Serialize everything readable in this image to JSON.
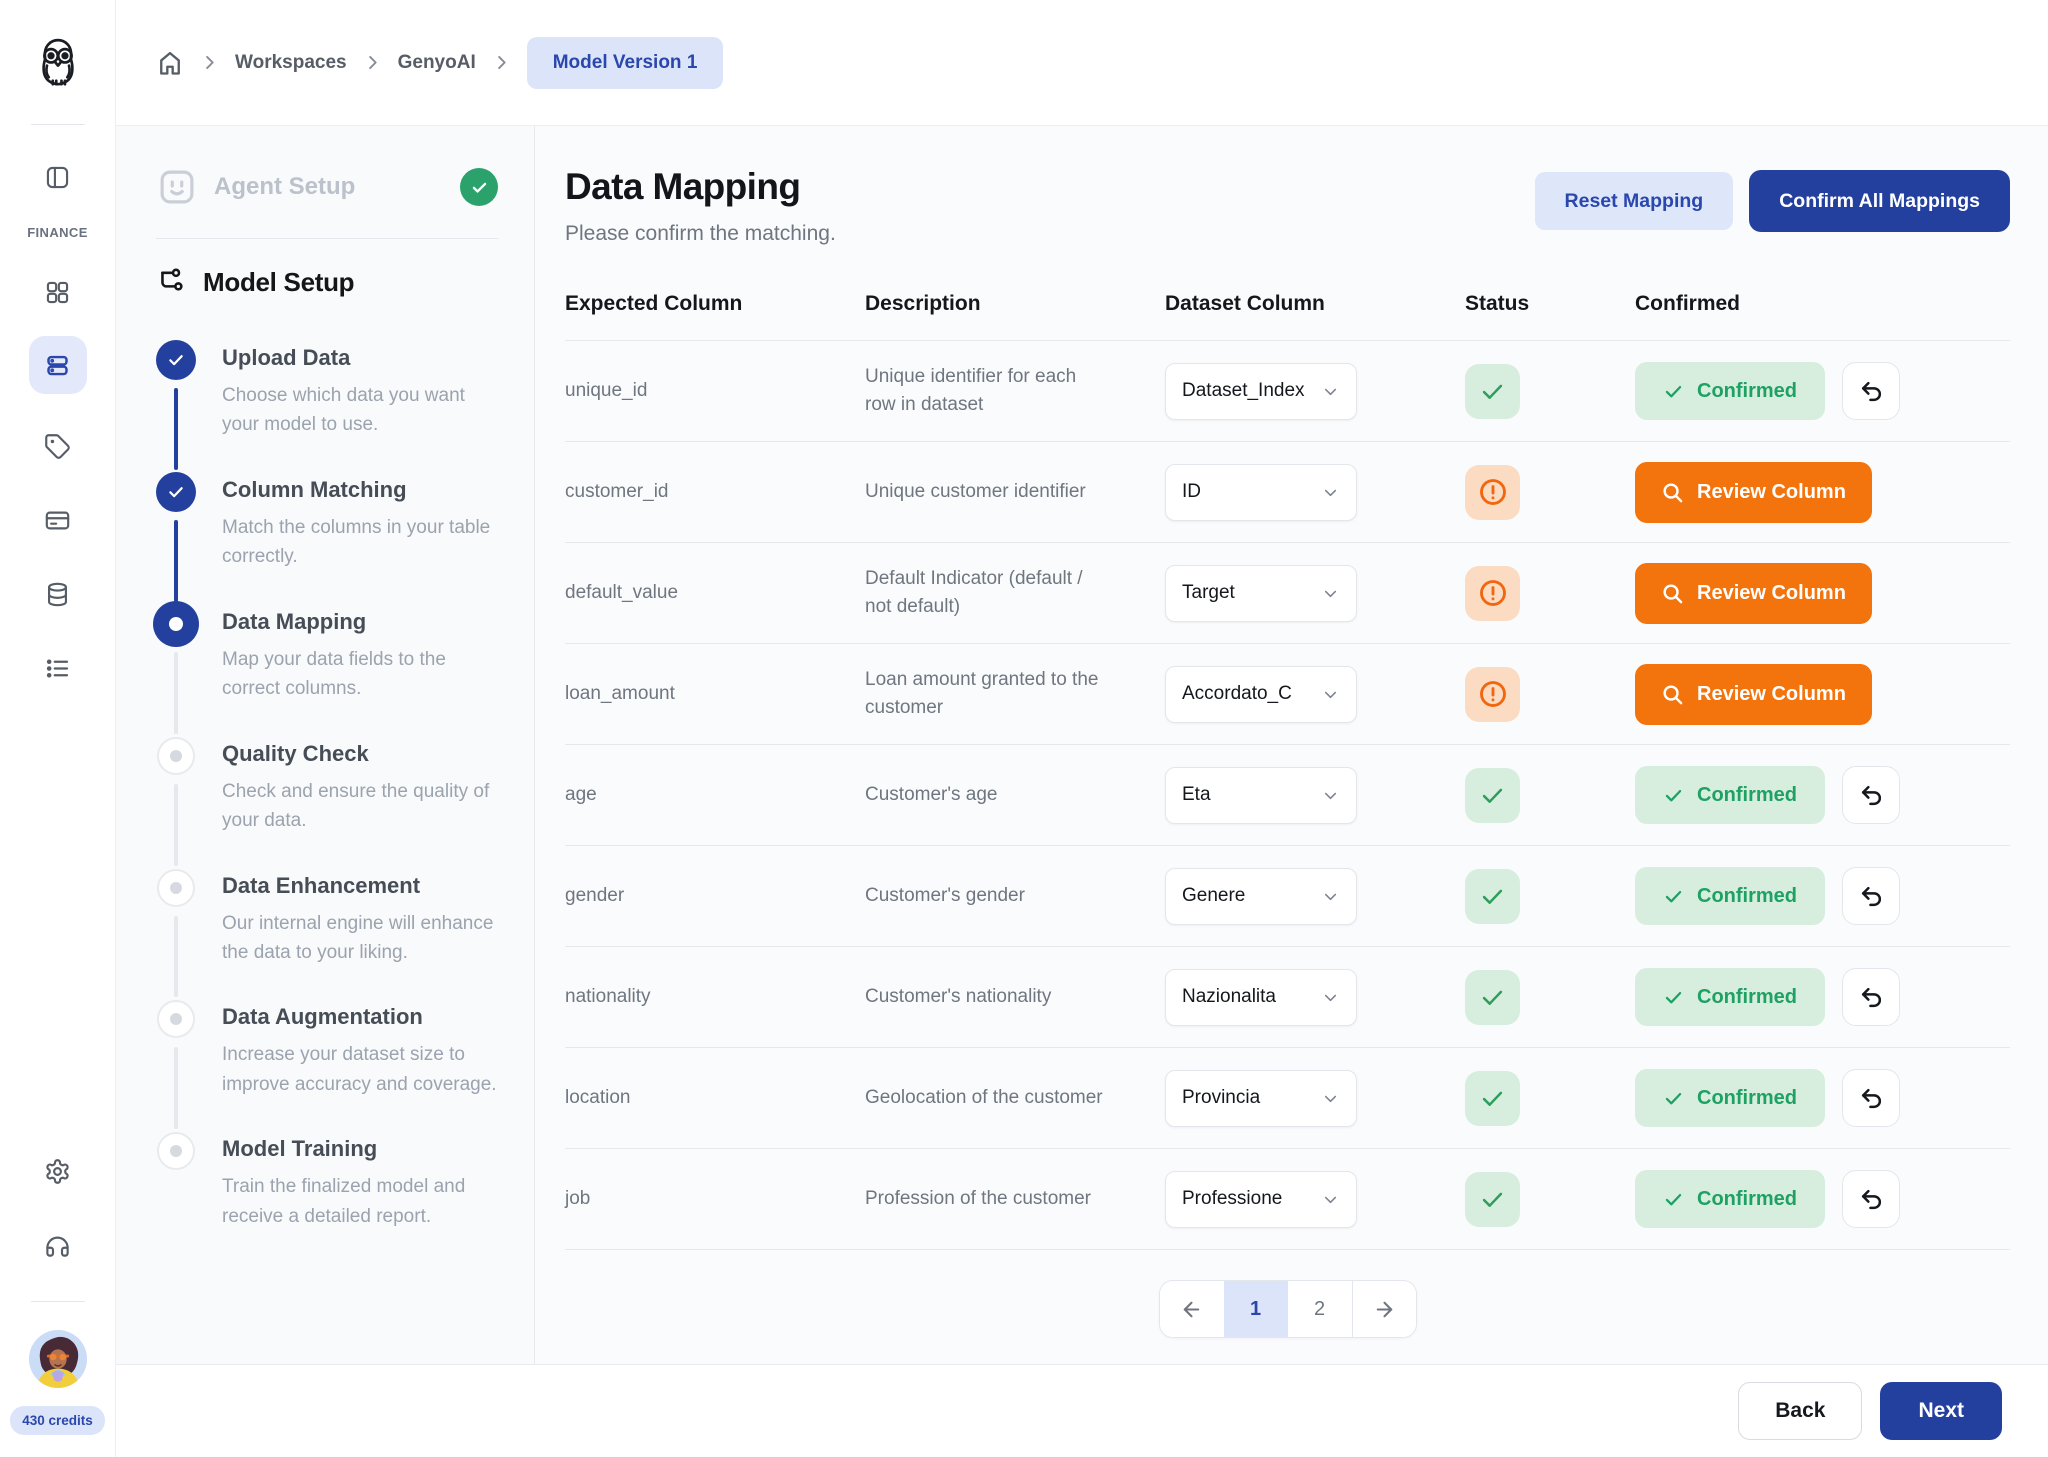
{
  "colors": {
    "primary_blue": "#24409E",
    "accent_blue_text": "#2A47AC",
    "light_blue_bg": "#DCE4FA",
    "success_green": "#1FA164",
    "success_green_bg": "#D7EEDF",
    "warning_orange": "#F3730D",
    "warning_orange_bg": "#FBDCC2"
  },
  "breadcrumb": {
    "home_icon": "home-icon",
    "items": [
      "Workspaces",
      "GenyoAI"
    ],
    "current": "Model Version 1"
  },
  "sidebar": {
    "logo_icon": "owl-logo",
    "section_label": "FINANCE",
    "icons": [
      "sidebar-toggle-icon",
      "dashboard-grid-icon",
      "models-rows-icon",
      "tag-icon",
      "billing-card-icon",
      "database-icon",
      "list-icon",
      "settings-gear-icon",
      "support-headset-icon"
    ],
    "active_icon": "models-rows-icon",
    "credits_badge": "430 credits"
  },
  "wizard": {
    "agent_setup": {
      "label": "Agent Setup",
      "status": "complete",
      "icon": "bot-face-icon",
      "status_icon": "check-circle-icon"
    },
    "model_setup": {
      "label": "Model Setup",
      "icon": "flow-branch-icon"
    },
    "steps": [
      {
        "title": "Upload Data",
        "description": "Choose which data you want your model to use.",
        "state": "complete"
      },
      {
        "title": "Column Matching",
        "description": "Match the columns in your table correctly.",
        "state": "complete"
      },
      {
        "title": "Data Mapping",
        "description": "Map your data fields to the correct columns.",
        "state": "current"
      },
      {
        "title": "Quality Check",
        "description": "Check and ensure the quality of your data.",
        "state": "upcoming"
      },
      {
        "title": "Data Enhancement",
        "description": "Our internal engine will enhance the data to your liking.",
        "state": "upcoming"
      },
      {
        "title": "Data Augmentation",
        "description": "Increase your dataset size to improve accuracy and coverage.",
        "state": "upcoming"
      },
      {
        "title": "Model Training",
        "description": "Train the finalized model and receive a detailed report.",
        "state": "upcoming"
      }
    ]
  },
  "main": {
    "title": "Data Mapping",
    "subtitle": "Please confirm the matching.",
    "actions": {
      "reset": "Reset Mapping",
      "confirm_all": "Confirm All Mappings"
    },
    "table": {
      "headers": [
        "Expected Column",
        "Description",
        "Dataset Column",
        "Status",
        "Confirmed"
      ],
      "confirmed_label": "Confirmed",
      "review_label": "Review Column",
      "rows": [
        {
          "expected": "unique_id",
          "description": "Unique identifier for each row in dataset",
          "dataset_column": "Dataset_Index",
          "status": "ok",
          "confirmed": true
        },
        {
          "expected": "customer_id",
          "description": "Unique customer identifier",
          "dataset_column": "ID",
          "status": "warning",
          "confirmed": false
        },
        {
          "expected": "default_value",
          "description": "Default Indicator (default / not default)",
          "dataset_column": "Target",
          "status": "warning",
          "confirmed": false
        },
        {
          "expected": "loan_amount",
          "description": "Loan amount granted to the customer",
          "dataset_column": "Accordato_C",
          "status": "warning",
          "confirmed": false
        },
        {
          "expected": "age",
          "description": "Customer's age",
          "dataset_column": "Eta",
          "status": "ok",
          "confirmed": true
        },
        {
          "expected": "gender",
          "description": "Customer's gender",
          "dataset_column": "Genere",
          "status": "ok",
          "confirmed": true
        },
        {
          "expected": "nationality",
          "description": "Customer's nationality",
          "dataset_column": "Nazionalita",
          "status": "ok",
          "confirmed": true
        },
        {
          "expected": "location",
          "description": "Geolocation of the customer",
          "dataset_column": "Provincia",
          "status": "ok",
          "confirmed": true
        },
        {
          "expected": "job",
          "description": "Profession of the customer",
          "dataset_column": "Professione",
          "status": "ok",
          "confirmed": true
        }
      ]
    },
    "pagination": {
      "pages": [
        "1",
        "2"
      ],
      "current": "1",
      "prev_icon": "arrow-left-icon",
      "next_icon": "arrow-right-icon"
    }
  },
  "footer": {
    "back": "Back",
    "next": "Next"
  }
}
